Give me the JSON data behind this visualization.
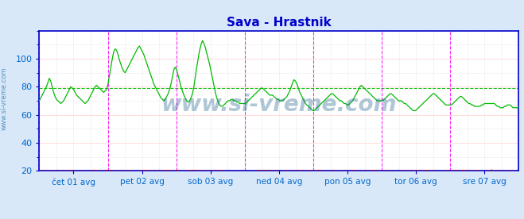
{
  "title": "Sava - Hrastnik",
  "title_color": "#0000cc",
  "title_fontsize": 11,
  "bg_color": "#d8e8f8",
  "plot_bg_color": "#ffffff",
  "ylim": [
    20,
    120
  ],
  "yticks": [
    20,
    40,
    60,
    80,
    100
  ],
  "grid_color_major": "#ffaaaa",
  "grid_color_minor": "#cccccc",
  "avg_flow_value": 79,
  "avg_temp_value": 20.0,
  "tick_label_color": "#0066cc",
  "vline_color": "#ff00ff",
  "border_color": "#0000cc",
  "watermark": "www.si-vreme.com",
  "watermark_color": "#1a5f8a",
  "watermark_alpha": 0.35,
  "watermark_fontsize": 20,
  "legend_temp_color": "#cc0000",
  "legend_flow_color": "#00aa00",
  "x_tick_labels": [
    "čet 01 avg",
    "pet 02 avg",
    "sob 03 avg",
    "ned 04 avg",
    "pon 05 avg",
    "tor 06 avg",
    "sre 07 avg"
  ],
  "x_tick_positions": [
    24,
    72,
    120,
    168,
    216,
    264,
    312
  ],
  "vline_positions": [
    0,
    48,
    96,
    144,
    192,
    240,
    288,
    336
  ],
  "temp_color": "#cc0000",
  "flow_color": "#00bb00",
  "sidebar_text": "www.si-vreme.com",
  "sidebar_color": "#4488bb",
  "flow_data": [
    70,
    72,
    74,
    76,
    78,
    80,
    83,
    86,
    84,
    80,
    76,
    73,
    71,
    70,
    69,
    68,
    69,
    70,
    72,
    74,
    76,
    78,
    80,
    79,
    78,
    76,
    74,
    73,
    72,
    71,
    70,
    69,
    68,
    69,
    70,
    72,
    74,
    76,
    78,
    80,
    81,
    80,
    79,
    78,
    77,
    76,
    77,
    78,
    82,
    88,
    94,
    100,
    105,
    107,
    106,
    103,
    99,
    96,
    93,
    91,
    90,
    92,
    94,
    96,
    98,
    100,
    102,
    104,
    106,
    108,
    109,
    107,
    105,
    103,
    100,
    97,
    94,
    91,
    88,
    85,
    82,
    80,
    78,
    76,
    74,
    72,
    71,
    70,
    71,
    73,
    75,
    78,
    82,
    87,
    92,
    94,
    92,
    88,
    84,
    80,
    77,
    74,
    72,
    70,
    69,
    70,
    72,
    75,
    80,
    87,
    94,
    100,
    106,
    110,
    113,
    111,
    108,
    104,
    100,
    96,
    91,
    86,
    81,
    76,
    72,
    69,
    67,
    66,
    66,
    67,
    68,
    69,
    70,
    70,
    71,
    71,
    70,
    70,
    69,
    69,
    68,
    68,
    68,
    68,
    68,
    69,
    70,
    71,
    72,
    73,
    74,
    75,
    76,
    77,
    78,
    79,
    79,
    78,
    77,
    76,
    75,
    74,
    74,
    74,
    73,
    72,
    71,
    71,
    70,
    70,
    70,
    71,
    72,
    73,
    75,
    77,
    80,
    83,
    85,
    84,
    82,
    79,
    76,
    74,
    72,
    70,
    68,
    67,
    66,
    65,
    64,
    63,
    63,
    64,
    65,
    66,
    67,
    68,
    69,
    70,
    71,
    72,
    73,
    74,
    75,
    75,
    74,
    73,
    72,
    71,
    70,
    70,
    69,
    68,
    68,
    67,
    67,
    68,
    69,
    70,
    72,
    74,
    76,
    78,
    80,
    81,
    80,
    79,
    78,
    77,
    76,
    75,
    74,
    73,
    72,
    71,
    70,
    70,
    70,
    70,
    70,
    71,
    72,
    73,
    74,
    75,
    75,
    74,
    73,
    72,
    71,
    70,
    70,
    70,
    69,
    68,
    68,
    67,
    66,
    65,
    64,
    63,
    63,
    63,
    64,
    65,
    66,
    67,
    68,
    69,
    70,
    71,
    72,
    73,
    74,
    75,
    75,
    74,
    73,
    72,
    71,
    70,
    69,
    68,
    67,
    67,
    67,
    67,
    67,
    68,
    69,
    70,
    71,
    72,
    73,
    73,
    72,
    71,
    70,
    69,
    68,
    68,
    67,
    67,
    66,
    66,
    66,
    66,
    66,
    67,
    67,
    68,
    68,
    68,
    68,
    68,
    68,
    68,
    68,
    67,
    66,
    66,
    65,
    65,
    65,
    66,
    66,
    67,
    67,
    67,
    66,
    65,
    65,
    65,
    65,
    66
  ],
  "temp_data": [
    20,
    20,
    20,
    20,
    20,
    20,
    20,
    20,
    20,
    20,
    20,
    20,
    20,
    20,
    20,
    20,
    20,
    20,
    20,
    20,
    20,
    20,
    20,
    20,
    20,
    20,
    20,
    20,
    20,
    20,
    20,
    20,
    20,
    20,
    20,
    20,
    20,
    20,
    20,
    20,
    20,
    20,
    20,
    20,
    20,
    20,
    20,
    20,
    20,
    20,
    20,
    20,
    20,
    20,
    20,
    20,
    20,
    20,
    20,
    20,
    20,
    20,
    20,
    20,
    20,
    20,
    20,
    20,
    20,
    20,
    20,
    20,
    20,
    20,
    20,
    20,
    20,
    20,
    20,
    20,
    20,
    20,
    20,
    20,
    20,
    20,
    20,
    20,
    20,
    20,
    20,
    20,
    20,
    20,
    20,
    20,
    20,
    20,
    20,
    20,
    20,
    20,
    20,
    20,
    20,
    20,
    20,
    20,
    20,
    20,
    20,
    20,
    20,
    20,
    20,
    20,
    20,
    20,
    20,
    20,
    20,
    20,
    20,
    20,
    20,
    20,
    20,
    20,
    20,
    20,
    20,
    20,
    20,
    20,
    20,
    20,
    20,
    20,
    20,
    20,
    20,
    20,
    20,
    20,
    20,
    20,
    20,
    20,
    20,
    20,
    20,
    20,
    20,
    20,
    20,
    20,
    20,
    20,
    20,
    20,
    20,
    20,
    20,
    20,
    20,
    20,
    20,
    20,
    20,
    20,
    20,
    20,
    20,
    20,
    20,
    20,
    20,
    20,
    20,
    20,
    20,
    20,
    20,
    20,
    20,
    20,
    20,
    20,
    20,
    20,
    20,
    20,
    20,
    20,
    20,
    20,
    20,
    20,
    20,
    20,
    20,
    20,
    20,
    20,
    20,
    20,
    20,
    20,
    20,
    20,
    20,
    20,
    20,
    20,
    20,
    20,
    20,
    20,
    20,
    20,
    20,
    20,
    20,
    20,
    20,
    20,
    20,
    20,
    20,
    20,
    20,
    20,
    20,
    20,
    20,
    20,
    20,
    20,
    20,
    20,
    20,
    20,
    20,
    20,
    20,
    20,
    20,
    20,
    20,
    20,
    20,
    20,
    20,
    20,
    20,
    20,
    20,
    20,
    20,
    20,
    20,
    20,
    20,
    20,
    20,
    20,
    20,
    20,
    20,
    20,
    20,
    20,
    20,
    20,
    20,
    20,
    20,
    20,
    20,
    20,
    20,
    20,
    20,
    20,
    20,
    20,
    20,
    20,
    20,
    20,
    20,
    20,
    20,
    20,
    20,
    20,
    20,
    20,
    20,
    20,
    20,
    20,
    20,
    20,
    20,
    20,
    20,
    20,
    20,
    20,
    20,
    20,
    20,
    20,
    20,
    20,
    20,
    20,
    20,
    20,
    20,
    20,
    20,
    20,
    20,
    20,
    20,
    20,
    20,
    20,
    20,
    20,
    20,
    20,
    20,
    20
  ]
}
